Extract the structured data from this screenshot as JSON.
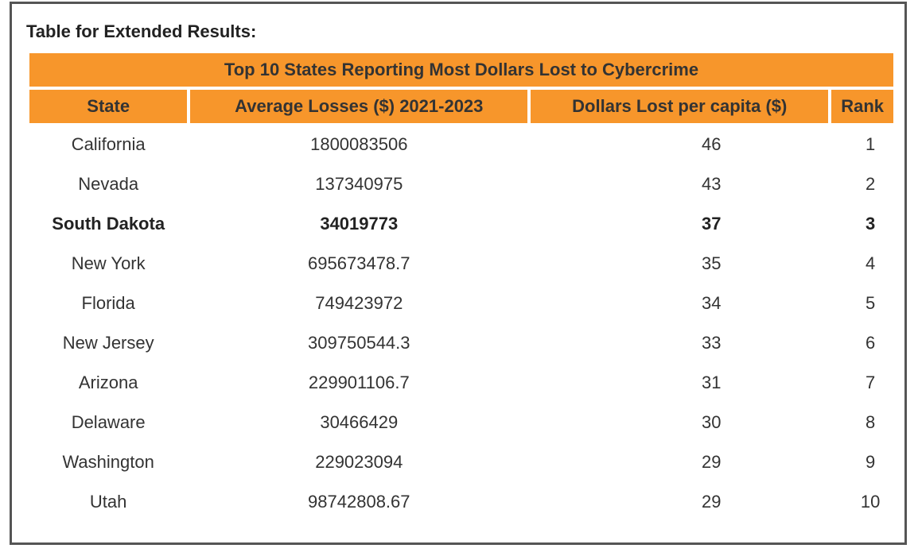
{
  "heading": "Table for Extended Results:",
  "table": {
    "title": "Top 10 States Reporting Most Dollars Lost to Cybercrime",
    "columns": [
      "State",
      "Average Losses ($) 2021-2023",
      "Dollars Lost per capita ($)",
      "Rank"
    ],
    "rows": [
      [
        "California",
        1800083506,
        46,
        1
      ],
      [
        "Nevada",
        137340975,
        43,
        2
      ],
      [
        "South Dakota",
        34019773,
        37,
        3
      ],
      [
        "New York",
        695673478.7,
        35,
        4
      ],
      [
        "Florida",
        749423972,
        34,
        5
      ],
      [
        "New Jersey",
        309750544.3,
        33,
        6
      ],
      [
        "Arizona",
        229901106.7,
        31,
        7
      ],
      [
        "Delaware",
        30466429,
        30,
        8
      ],
      [
        "Washington",
        229023094,
        29,
        9
      ],
      [
        "Utah",
        98742808.67,
        29,
        10
      ]
    ]
  }
}
